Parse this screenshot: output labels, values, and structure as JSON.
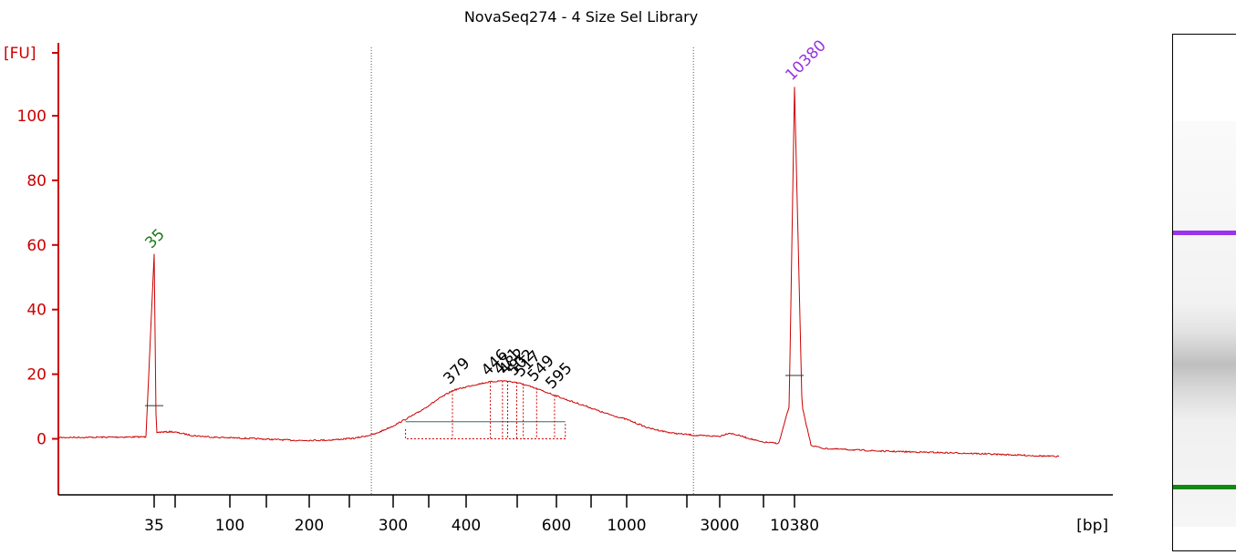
{
  "chart_data": {
    "type": "line",
    "title": "NovaSeq274 - 4 Size Sel Library",
    "ylabel": "[FU]",
    "xlabel": "[bp]",
    "ylim": [
      -17,
      122
    ],
    "y_ticks": [
      0,
      20,
      40,
      60,
      80,
      100
    ],
    "x_tick_labels": [
      "35",
      "100",
      "200",
      "300",
      "400",
      "600",
      "1000",
      "3000",
      "10380"
    ],
    "grid": false,
    "series_color": "#cc0000",
    "baseline": 0.5,
    "trace": [
      [
        25,
        0.4
      ],
      [
        34,
        0.6
      ],
      [
        35,
        57
      ],
      [
        36,
        2
      ],
      [
        45,
        2.2
      ],
      [
        60,
        1
      ],
      [
        80,
        0.5
      ],
      [
        120,
        0.1
      ],
      [
        180,
        -0.5
      ],
      [
        220,
        -0.4
      ],
      [
        250,
        0.2
      ],
      [
        275,
        1.5
      ],
      [
        300,
        4
      ],
      [
        330,
        8
      ],
      [
        360,
        12.5
      ],
      [
        380,
        15
      ],
      [
        410,
        16.5
      ],
      [
        440,
        17.5
      ],
      [
        470,
        18
      ],
      [
        500,
        17.5
      ],
      [
        530,
        16.3
      ],
      [
        560,
        15
      ],
      [
        595,
        13.5
      ],
      [
        650,
        12
      ],
      [
        750,
        10
      ],
      [
        850,
        8
      ],
      [
        1000,
        6
      ],
      [
        1300,
        3.3
      ],
      [
        1700,
        1.8
      ],
      [
        2300,
        1
      ],
      [
        3000,
        0.8
      ],
      [
        3500,
        1.8
      ],
      [
        4000,
        1.2
      ],
      [
        5000,
        0
      ],
      [
        6000,
        -1
      ],
      [
        8000,
        -1.4
      ],
      [
        9500,
        10
      ],
      [
        10380,
        109
      ],
      [
        11000,
        10
      ],
      [
        11800,
        -2
      ],
      [
        13000,
        -3
      ],
      [
        20000,
        -3.8
      ],
      [
        40000,
        -4.5
      ],
      [
        80000,
        -5.5
      ]
    ],
    "peaks": [
      {
        "label": "35",
        "x": 35,
        "y": 57,
        "color": "#1a7a1a"
      },
      {
        "label": "379",
        "x": 379,
        "y": 15
      },
      {
        "label": "446",
        "x": 446,
        "y": 17.6
      },
      {
        "label": "471",
        "x": 471,
        "y": 18
      },
      {
        "label": "482",
        "x": 482,
        "y": 17.9
      },
      {
        "label": "502",
        "x": 502,
        "y": 17.6
      },
      {
        "label": "517",
        "x": 517,
        "y": 17.2
      },
      {
        "label": "549",
        "x": 549,
        "y": 15.8
      },
      {
        "label": "595",
        "x": 595,
        "y": 13.5
      },
      {
        "label": "10380",
        "x": 10380,
        "y": 109,
        "color": "#9b30e0"
      }
    ],
    "smear_regions": [
      [
        270,
        2200
      ]
    ],
    "gel_bands": [
      {
        "name": "upper-marker",
        "color": "#9933ee"
      },
      {
        "name": "lower-marker",
        "color": "#118811"
      }
    ]
  }
}
